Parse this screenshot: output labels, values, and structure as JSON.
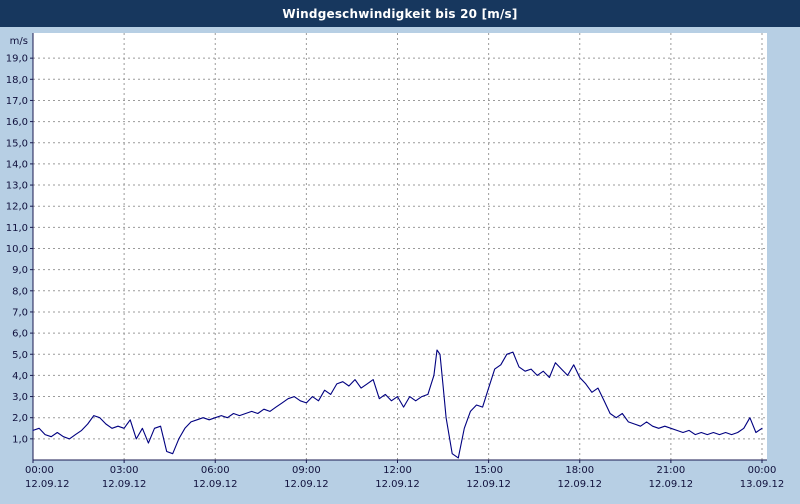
{
  "title": "Windgeschwindigkeit bis 20 [m/s]",
  "colors": {
    "titlebar": "#17375e",
    "title_text": "#ffffff",
    "bg": "#b7cfe4",
    "plot_bg": "#ffffff",
    "grid": "#9b9b9b",
    "axis": "#1a1a50",
    "line": "#000080",
    "label": "#10103c"
  },
  "chart_data": {
    "type": "line",
    "title": "Windgeschwindigkeit bis 20 [m/s]",
    "ylabel": "m/s",
    "ylim": [
      0,
      20
    ],
    "xlim": [
      0,
      24
    ],
    "grid": true,
    "legend": "none",
    "ytick_labels": [
      "1,0",
      "2,0",
      "3,0",
      "4,0",
      "5,0",
      "6,0",
      "7,0",
      "8,0",
      "9,0",
      "10,0",
      "11,0",
      "12,0",
      "13,0",
      "14,0",
      "15,0",
      "16,0",
      "17,0",
      "18,0",
      "19,0"
    ],
    "x_ticks": [
      {
        "hour": 0,
        "time": "00:00",
        "date": "12.09.12"
      },
      {
        "hour": 3,
        "time": "03:00",
        "date": "12.09.12"
      },
      {
        "hour": 6,
        "time": "06:00",
        "date": "12.09.12"
      },
      {
        "hour": 9,
        "time": "09:00",
        "date": "12.09.12"
      },
      {
        "hour": 12,
        "time": "12:00",
        "date": "12.09.12"
      },
      {
        "hour": 15,
        "time": "15:00",
        "date": "12.09.12"
      },
      {
        "hour": 18,
        "time": "18:00",
        "date": "12.09.12"
      },
      {
        "hour": 21,
        "time": "21:00",
        "date": "12.09.12"
      },
      {
        "hour": 24,
        "time": "00:00",
        "date": "13.09.12"
      }
    ],
    "series_name": "Windgeschwindigkeit",
    "points": [
      [
        0,
        1.4
      ],
      [
        0.2,
        1.5
      ],
      [
        0.4,
        1.2
      ],
      [
        0.6,
        1.1
      ],
      [
        0.8,
        1.3
      ],
      [
        1,
        1.1
      ],
      [
        1.2,
        1
      ],
      [
        1.4,
        1.2
      ],
      [
        1.6,
        1.4
      ],
      [
        1.8,
        1.7
      ],
      [
        2,
        2.1
      ],
      [
        2.2,
        2
      ],
      [
        2.4,
        1.7
      ],
      [
        2.6,
        1.5
      ],
      [
        2.8,
        1.6
      ],
      [
        3,
        1.5
      ],
      [
        3.2,
        1.9
      ],
      [
        3.4,
        1
      ],
      [
        3.6,
        1.5
      ],
      [
        3.8,
        0.8
      ],
      [
        4,
        1.5
      ],
      [
        4.2,
        1.6
      ],
      [
        4.4,
        0.4
      ],
      [
        4.6,
        0.3
      ],
      [
        4.8,
        1
      ],
      [
        5,
        1.5
      ],
      [
        5.2,
        1.8
      ],
      [
        5.4,
        1.9
      ],
      [
        5.6,
        2
      ],
      [
        5.8,
        1.9
      ],
      [
        6,
        2
      ],
      [
        6.2,
        2.1
      ],
      [
        6.4,
        2
      ],
      [
        6.6,
        2.2
      ],
      [
        6.8,
        2.1
      ],
      [
        7,
        2.2
      ],
      [
        7.2,
        2.3
      ],
      [
        7.4,
        2.2
      ],
      [
        7.6,
        2.4
      ],
      [
        7.8,
        2.3
      ],
      [
        8,
        2.5
      ],
      [
        8.2,
        2.7
      ],
      [
        8.4,
        2.9
      ],
      [
        8.6,
        3
      ],
      [
        8.8,
        2.8
      ],
      [
        9,
        2.7
      ],
      [
        9.2,
        3
      ],
      [
        9.4,
        2.8
      ],
      [
        9.6,
        3.3
      ],
      [
        9.8,
        3.1
      ],
      [
        10,
        3.6
      ],
      [
        10.2,
        3.7
      ],
      [
        10.4,
        3.5
      ],
      [
        10.6,
        3.8
      ],
      [
        10.8,
        3.4
      ],
      [
        11,
        3.6
      ],
      [
        11.2,
        3.8
      ],
      [
        11.4,
        2.9
      ],
      [
        11.6,
        3.1
      ],
      [
        11.8,
        2.8
      ],
      [
        12,
        3
      ],
      [
        12.2,
        2.5
      ],
      [
        12.4,
        3
      ],
      [
        12.6,
        2.8
      ],
      [
        12.8,
        3
      ],
      [
        13,
        3.1
      ],
      [
        13.2,
        4
      ],
      [
        13.3,
        5.2
      ],
      [
        13.4,
        5
      ],
      [
        13.5,
        3.5
      ],
      [
        13.6,
        2
      ],
      [
        13.8,
        0.3
      ],
      [
        14,
        0.1
      ],
      [
        14.2,
        1.5
      ],
      [
        14.4,
        2.3
      ],
      [
        14.6,
        2.6
      ],
      [
        14.8,
        2.5
      ],
      [
        15,
        3.4
      ],
      [
        15.2,
        4.3
      ],
      [
        15.4,
        4.5
      ],
      [
        15.6,
        5
      ],
      [
        15.8,
        5.1
      ],
      [
        16,
        4.4
      ],
      [
        16.2,
        4.2
      ],
      [
        16.4,
        4.3
      ],
      [
        16.6,
        4
      ],
      [
        16.8,
        4.2
      ],
      [
        17,
        3.9
      ],
      [
        17.2,
        4.6
      ],
      [
        17.4,
        4.3
      ],
      [
        17.6,
        4
      ],
      [
        17.8,
        4.5
      ],
      [
        18,
        3.9
      ],
      [
        18.2,
        3.6
      ],
      [
        18.4,
        3.2
      ],
      [
        18.6,
        3.4
      ],
      [
        18.8,
        2.8
      ],
      [
        19,
        2.2
      ],
      [
        19.2,
        2
      ],
      [
        19.4,
        2.2
      ],
      [
        19.6,
        1.8
      ],
      [
        19.8,
        1.7
      ],
      [
        20,
        1.6
      ],
      [
        20.2,
        1.8
      ],
      [
        20.4,
        1.6
      ],
      [
        20.6,
        1.5
      ],
      [
        20.8,
        1.6
      ],
      [
        21,
        1.5
      ],
      [
        21.2,
        1.4
      ],
      [
        21.4,
        1.3
      ],
      [
        21.6,
        1.4
      ],
      [
        21.8,
        1.2
      ],
      [
        22,
        1.3
      ],
      [
        22.2,
        1.2
      ],
      [
        22.4,
        1.3
      ],
      [
        22.6,
        1.2
      ],
      [
        22.8,
        1.3
      ],
      [
        23,
        1.2
      ],
      [
        23.2,
        1.3
      ],
      [
        23.4,
        1.5
      ],
      [
        23.6,
        2
      ],
      [
        23.8,
        1.3
      ],
      [
        24,
        1.5
      ]
    ]
  }
}
